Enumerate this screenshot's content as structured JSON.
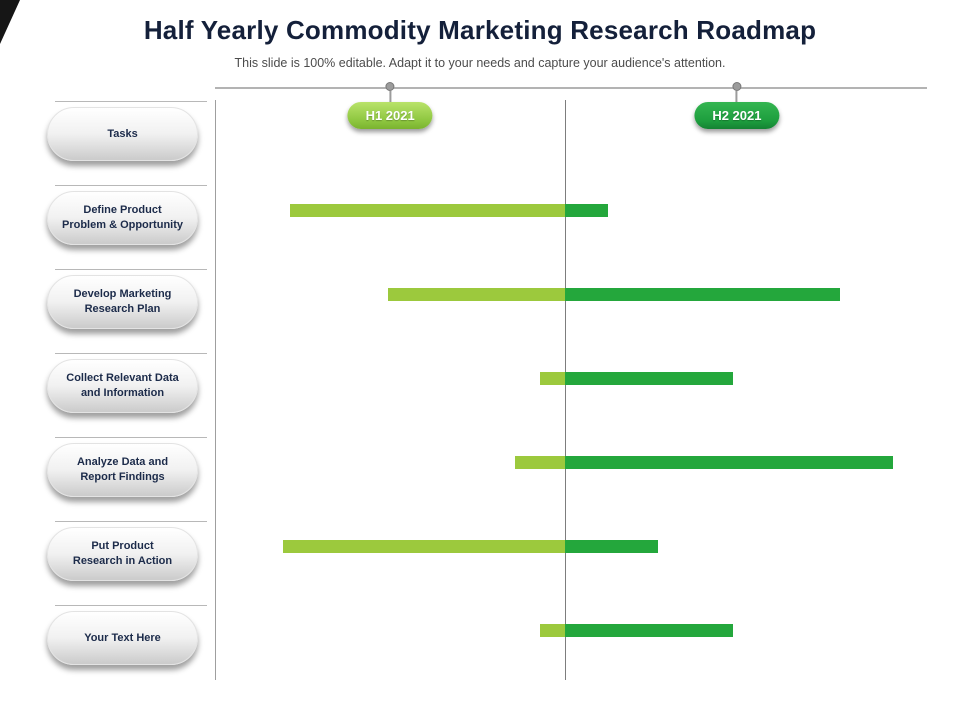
{
  "slide": {
    "title": "Half Yearly Commodity Marketing Research Roadmap",
    "subtitle": "This slide is 100% editable. Adapt it to your needs and capture your audience's attention."
  },
  "timeline": {
    "periods": [
      {
        "label": "H1 2021",
        "color": "#8DC63F",
        "position_pct": 24.6
      },
      {
        "label": "H2 2021",
        "color": "#1D9E3E",
        "position_pct": 73.3
      }
    ]
  },
  "sidebar": {
    "items": [
      "Tasks",
      "Define Product\nProblem & Opportunity",
      "Develop Marketing\nResearch Plan",
      "Collect Relevant Data\nand Information",
      "Analyze Data and\nReport Findings",
      "Put Product\nResearch in Action",
      "Your Text Here"
    ]
  },
  "chart_data": {
    "type": "bar",
    "subtype": "gantt-roadmap",
    "title": "Half Yearly Commodity Marketing Research Roadmap",
    "x_axis_periods": [
      "H1 2021",
      "H2 2021"
    ],
    "split_pct": 49.2,
    "legend_position": "none",
    "grid": false,
    "colors": {
      "h1_segment": "#9CC93D",
      "h2_segment": "#24A73C"
    },
    "tasks": [
      {
        "label": "Define Product Problem & Opportunity",
        "start_pct": 10.5,
        "end_pct": 55.2
      },
      {
        "label": "Develop Marketing Research Plan",
        "start_pct": 24.3,
        "end_pct": 87.8
      },
      {
        "label": "Collect Relevant Data and Information",
        "start_pct": 45.6,
        "end_pct": 72.8
      },
      {
        "label": "Analyze Data and Report Findings",
        "start_pct": 42.1,
        "end_pct": 95.2
      },
      {
        "label": "Put Product Research in Action",
        "start_pct": 9.6,
        "end_pct": 62.2
      },
      {
        "label": "Your Text Here",
        "start_pct": 45.6,
        "end_pct": 72.8
      }
    ]
  }
}
